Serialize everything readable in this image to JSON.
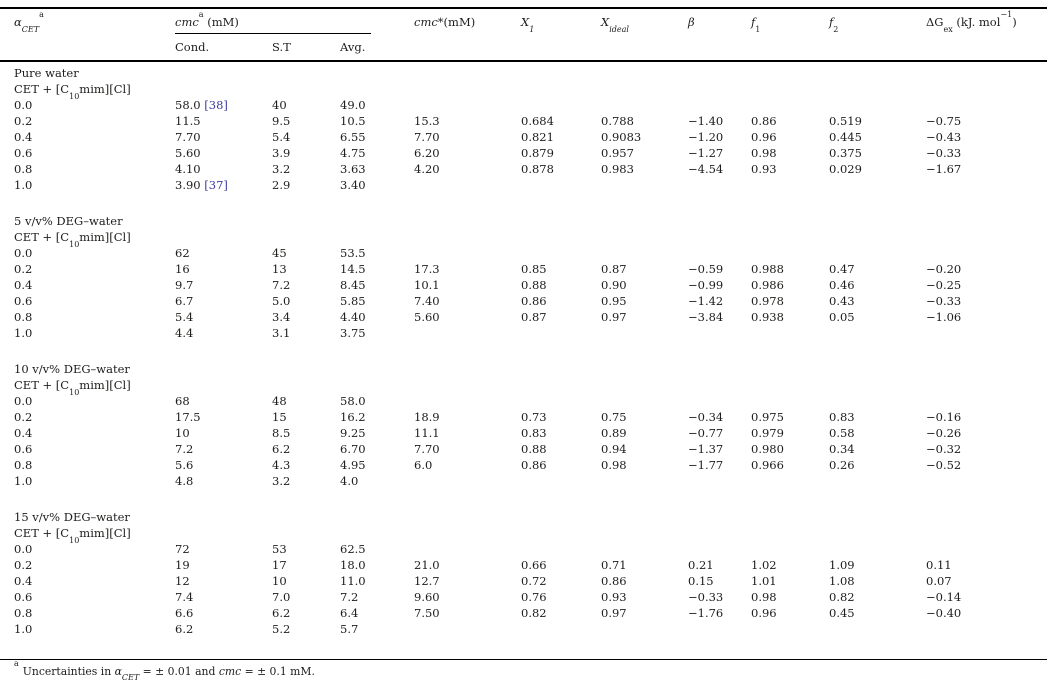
{
  "colors": {
    "text": "#1d1d1b",
    "rule": "#000000",
    "citation_link": "#3c3c9e"
  },
  "table": {
    "headers": {
      "alpha": {
        "symbol": "α",
        "sub": "CET",
        "sup": "a"
      },
      "cmc_group": {
        "name": "cmc",
        "sup": "a",
        "unit": " (mM)"
      },
      "sub_cols": [
        "Cond.",
        "S.T",
        "Avg."
      ],
      "cmc_star": {
        "name": "cmc",
        "mark": "*",
        "unit": "(mM)"
      },
      "x1": {
        "name": "X",
        "sub": "1"
      },
      "xideal": {
        "name": "X",
        "sub": "ideal"
      },
      "beta": "β",
      "f1": {
        "name": "f",
        "sub": "1"
      },
      "f2": {
        "name": "f",
        "sub": "2"
      },
      "dgex": {
        "prefix": "ΔG",
        "sub": "ex",
        "unit_open": " (kJ. mol",
        "sup": "−1",
        "close": ")"
      }
    },
    "subtitle": {
      "pre": "CET + [C",
      "sub": "10",
      "post": "mim][Cl]"
    },
    "sections": [
      {
        "title": "Pure water",
        "rows": [
          {
            "a": "0.0",
            "cond": "58.0",
            "ref": "[38]",
            "st": "40",
            "avg": "49.0"
          },
          {
            "a": "0.2",
            "cond": "11.5",
            "st": "9.5",
            "avg": "10.5",
            "cmc": "15.3",
            "x1": "0.684",
            "xi": "0.788",
            "b": "−1.40",
            "f1": "0.86",
            "f2": "0.519",
            "dg": "−0.75"
          },
          {
            "a": "0.4",
            "cond": "7.70",
            "st": "5.4",
            "avg": "6.55",
            "cmc": "7.70",
            "x1": "0.821",
            "xi": "0.9083",
            "b": "−1.20",
            "f1": "0.96",
            "f2": "0.445",
            "dg": "−0.43"
          },
          {
            "a": "0.6",
            "cond": "5.60",
            "st": "3.9",
            "avg": "4.75",
            "cmc": "6.20",
            "x1": "0.879",
            "xi": "0.957",
            "b": "−1.27",
            "f1": "0.98",
            "f2": "0.375",
            "dg": "−0.33"
          },
          {
            "a": "0.8",
            "cond": "4.10",
            "st": "3.2",
            "avg": "3.63",
            "cmc": "4.20",
            "x1": "0.878",
            "xi": "0.983",
            "b": "−4.54",
            "f1": "0.93",
            "f2": "0.029",
            "dg": "−1.67"
          },
          {
            "a": "1.0",
            "cond": "3.90",
            "ref": "[37]",
            "st": "2.9",
            "avg": "3.40"
          }
        ]
      },
      {
        "title": "5 v/v% DEG–water",
        "rows": [
          {
            "a": "0.0",
            "cond": "62",
            "st": "45",
            "avg": "53.5"
          },
          {
            "a": "0.2",
            "cond": "16",
            "st": "13",
            "avg": "14.5",
            "cmc": "17.3",
            "x1": "0.85",
            "xi": "0.87",
            "b": "−0.59",
            "f1": "0.988",
            "f2": "0.47",
            "dg": "−0.20"
          },
          {
            "a": "0.4",
            "cond": "9.7",
            "st": "7.2",
            "avg": "8.45",
            "cmc": "10.1",
            "x1": "0.88",
            "xi": "0.90",
            "b": "−0.99",
            "f1": "0.986",
            "f2": "0.46",
            "dg": "−0.25"
          },
          {
            "a": "0.6",
            "cond": "6.7",
            "st": "5.0",
            "avg": "5.85",
            "cmc": "7.40",
            "x1": "0.86",
            "xi": "0.95",
            "b": "−1.42",
            "f1": "0.978",
            "f2": "0.43",
            "dg": "−0.33"
          },
          {
            "a": "0.8",
            "cond": "5.4",
            "st": "3.4",
            "avg": "4.40",
            "cmc": "5.60",
            "x1": "0.87",
            "xi": "0.97",
            "b": "−3.84",
            "f1": "0.938",
            "f2": "0.05",
            "dg": "−1.06"
          },
          {
            "a": "1.0",
            "cond": "4.4",
            "st": "3.1",
            "avg": "3.75"
          }
        ]
      },
      {
        "title": "10 v/v% DEG–water",
        "rows": [
          {
            "a": "0.0",
            "cond": "68",
            "st": "48",
            "avg": "58.0"
          },
          {
            "a": "0.2",
            "cond": "17.5",
            "st": "15",
            "avg": "16.2",
            "cmc": "18.9",
            "x1": "0.73",
            "xi": "0.75",
            "b": "−0.34",
            "f1": "0.975",
            "f2": "0.83",
            "dg": "−0.16"
          },
          {
            "a": "0.4",
            "cond": "10",
            "st": "8.5",
            "avg": "9.25",
            "cmc": "11.1",
            "x1": "0.83",
            "xi": "0.89",
            "b": "−0.77",
            "f1": "0.979",
            "f2": "0.58",
            "dg": "−0.26"
          },
          {
            "a": "0.6",
            "cond": "7.2",
            "st": "6.2",
            "avg": "6.70",
            "cmc": "7.70",
            "x1": "0.88",
            "xi": "0.94",
            "b": "−1.37",
            "f1": "0.980",
            "f2": "0.34",
            "dg": "−0.32"
          },
          {
            "a": "0.8",
            "cond": "5.6",
            "st": "4.3",
            "avg": "4.95",
            "cmc": "6.0",
            "x1": "0.86",
            "xi": "0.98",
            "b": "−1.77",
            "f1": "0.966",
            "f2": "0.26",
            "dg": "−0.52"
          },
          {
            "a": "1.0",
            "cond": "4.8",
            "st": "3.2",
            "avg": "4.0"
          }
        ]
      },
      {
        "title": "15 v/v% DEG–water",
        "rows": [
          {
            "a": "0.0",
            "cond": "72",
            "st": "53",
            "avg": "62.5"
          },
          {
            "a": "0.2",
            "cond": "19",
            "st": "17",
            "avg": "18.0",
            "cmc": "21.0",
            "x1": "0.66",
            "xi": "0.71",
            "b": "0.21",
            "f1": "1.02",
            "f2": "1.09",
            "dg": "0.11"
          },
          {
            "a": "0.4",
            "cond": "12",
            "st": "10",
            "avg": "11.0",
            "cmc": "12.7",
            "x1": "0.72",
            "xi": "0.86",
            "b": "0.15",
            "f1": "1.01",
            "f2": "1.08",
            "dg": "0.07"
          },
          {
            "a": "0.6",
            "cond": "7.4",
            "st": "7.0",
            "avg": "7.2",
            "cmc": "9.60",
            "x1": "0.76",
            "xi": "0.93",
            "b": "−0.33",
            "f1": "0.98",
            "f2": "0.82",
            "dg": "−0.14"
          },
          {
            "a": "0.8",
            "cond": "6.6",
            "st": "6.2",
            "avg": "6.4",
            "cmc": "7.50",
            "x1": "0.82",
            "xi": "0.97",
            "b": "−1.76",
            "f1": "0.96",
            "f2": "0.45",
            "dg": "−0.40"
          },
          {
            "a": "1.0",
            "cond": "6.2",
            "st": "5.2",
            "avg": "5.7"
          }
        ]
      }
    ],
    "footnote": {
      "marker": "a",
      "text1": "Uncertainties in ",
      "alpha": "α",
      "alpha_sub": "CET",
      "text2": " = ± 0.01 and ",
      "cmc": "cmc",
      "text3": " = ± 0.1 mM."
    }
  }
}
